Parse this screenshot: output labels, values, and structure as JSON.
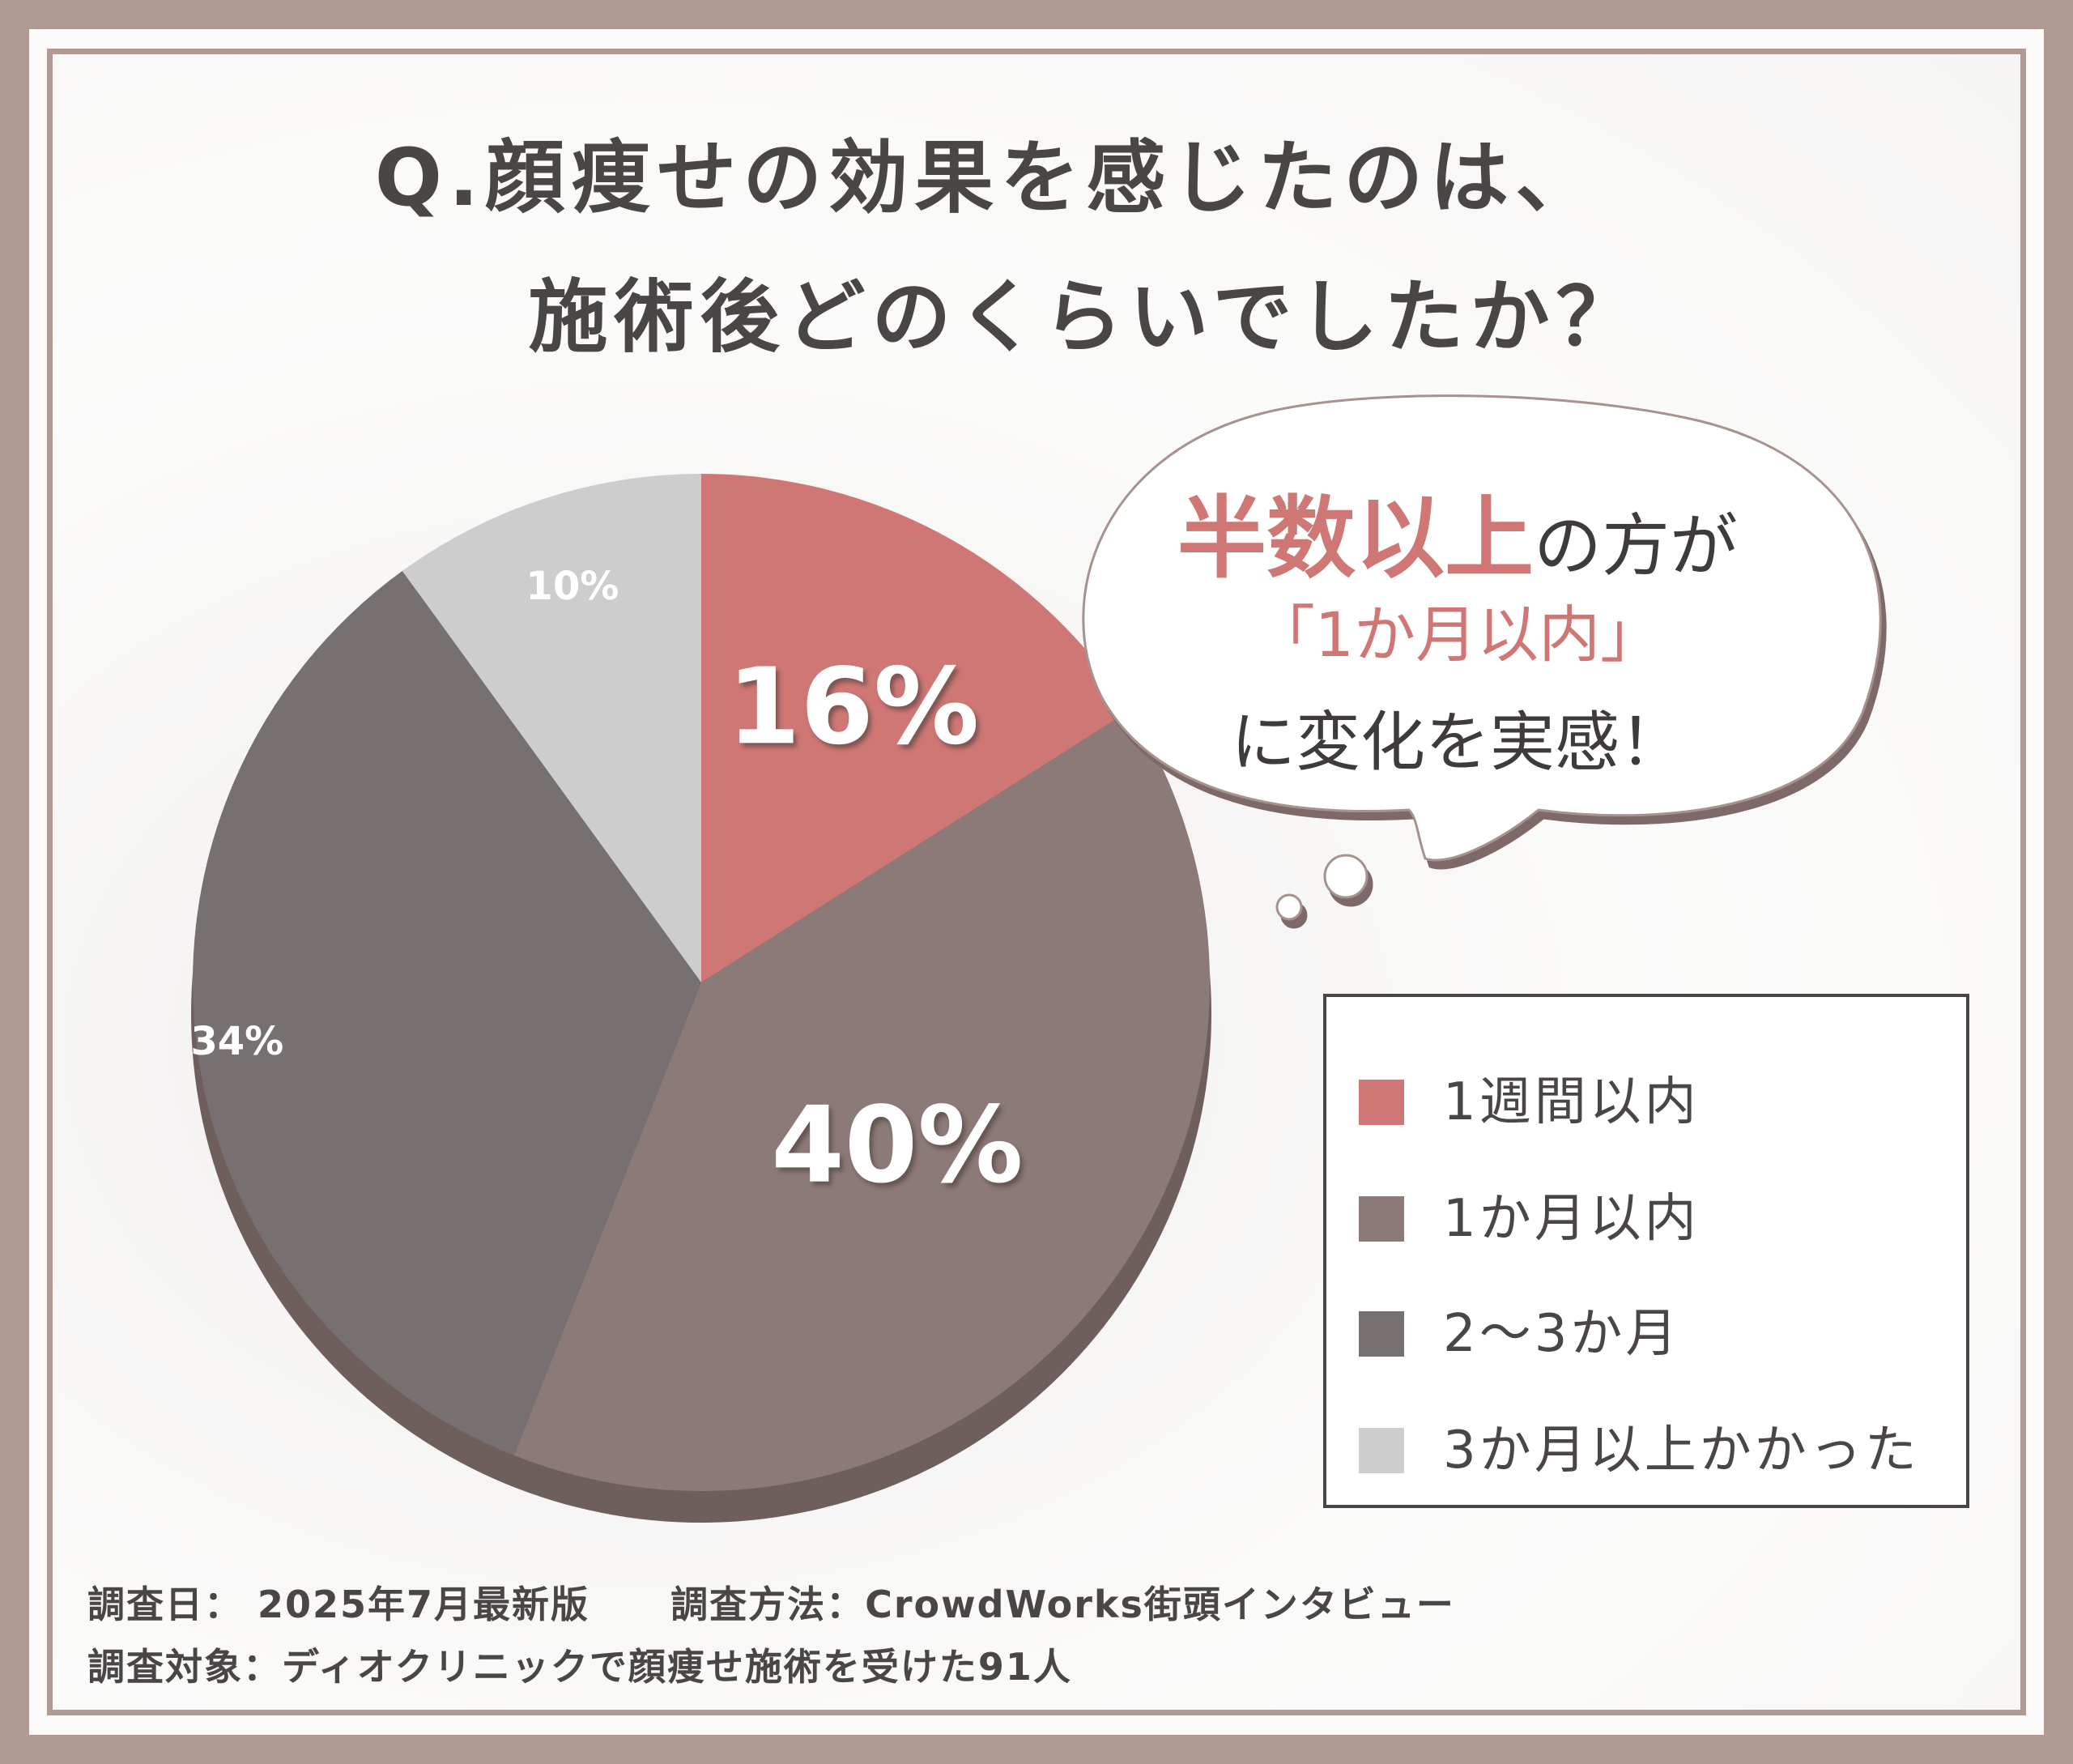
{
  "title": {
    "line1": "Q.顔痩せの効果を感じたのは、",
    "line2": "施術後どのくらいでしたか？"
  },
  "callout": {
    "highlight": "半数以上",
    "rest": "の方が",
    "line2": "「1か月以内」",
    "line3": "に変化を実感！"
  },
  "footer": {
    "date": "調査日： 2025年7月最新版",
    "method": "調査方法：CrowdWorks街頭インタビュー",
    "subject": "調査対象：ディオクリニックで顔痩せ施術を受けた91人"
  },
  "chart_data": {
    "type": "pie",
    "title": "Q.顔痩せの効果を感じたのは、施術後どのくらいでしたか？",
    "slices": [
      {
        "label": "1週間以内",
        "value": 16,
        "display": "16%",
        "color": "#cf7775"
      },
      {
        "label": "1か月以内",
        "value": 40,
        "display": "40%",
        "color": "#8c7a78"
      },
      {
        "label": "2〜3か月",
        "value": 34,
        "display": "34%",
        "color": "#767170"
      },
      {
        "label": "3か月以上かかった",
        "value": 10,
        "display": "10%",
        "color": "#cecdcd"
      }
    ],
    "legend_position": "right",
    "start_angle_deg": 0,
    "direction": "clockwise"
  }
}
